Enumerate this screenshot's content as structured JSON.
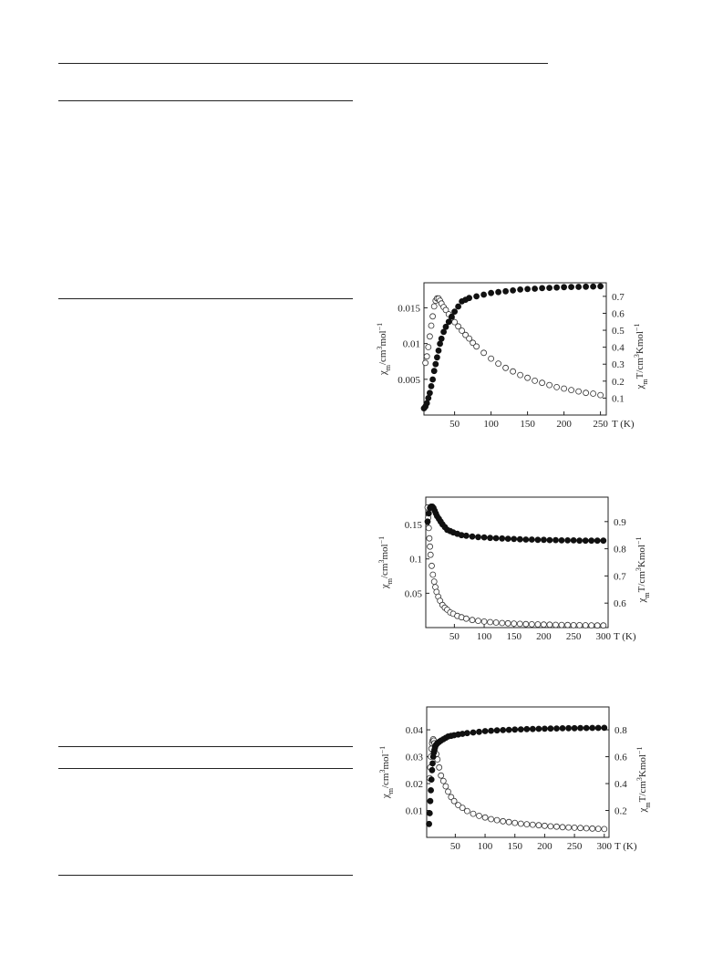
{
  "page": {
    "background": "#ffffff"
  },
  "chart_data": [
    {
      "type": "scatter",
      "x_tick_labels": [
        "50",
        "100",
        "150",
        "200",
        "250"
      ],
      "xlabel": "T (K)",
      "xlim": [
        8,
        258
      ],
      "ylim_left": [
        0.0,
        0.0185
      ],
      "ylim_right": [
        0.0,
        0.78
      ],
      "y_left_ticks": [
        0.005,
        0.01,
        0.015
      ],
      "y_left_tick_labels": [
        "0.005",
        "0.01",
        "0.015"
      ],
      "y_right_ticks": [
        0.1,
        0.2,
        0.3,
        0.4,
        0.5,
        0.6,
        0.7
      ],
      "y_right_tick_labels": [
        "0.1",
        "0.2",
        "0.3",
        "0.4",
        "0.5",
        "0.6",
        "0.7"
      ],
      "ylabel_left": {
        "base": "χ",
        "sub": "m",
        "rest1": "/cm",
        "sup1": "3",
        "rest2": "mol",
        "sup2": "−1"
      },
      "ylabel_right": {
        "base": "χ",
        "sub": "m",
        "rest1": "T/cm",
        "sup1": "3",
        "rest2": "Kmol",
        "sup2": "−1"
      },
      "series": [
        {
          "marker": "open-circle",
          "axis": "left",
          "x": [
            10,
            12,
            14,
            16,
            18,
            20,
            22,
            24,
            26,
            28,
            30,
            32,
            35,
            38,
            42,
            46,
            50,
            55,
            60,
            65,
            70,
            75,
            80,
            90,
            100,
            110,
            120,
            130,
            140,
            150,
            160,
            170,
            180,
            190,
            200,
            210,
            220,
            230,
            240,
            250
          ],
          "y": [
            0.0073,
            0.0082,
            0.0095,
            0.011,
            0.0125,
            0.0138,
            0.0152,
            0.016,
            0.0163,
            0.0163,
            0.016,
            0.0156,
            0.0151,
            0.0147,
            0.0141,
            0.0136,
            0.013,
            0.0124,
            0.0118,
            0.0112,
            0.0107,
            0.0101,
            0.0096,
            0.0087,
            0.0079,
            0.0072,
            0.0066,
            0.0061,
            0.0056,
            0.0052,
            0.0048,
            0.0045,
            0.0042,
            0.0039,
            0.0037,
            0.0035,
            0.0033,
            0.0031,
            0.003,
            0.0028
          ]
        },
        {
          "marker": "filled-circle",
          "axis": "right",
          "x": [
            8,
            10,
            12,
            14,
            16,
            18,
            20,
            22,
            24,
            26,
            28,
            30,
            32,
            35,
            38,
            42,
            46,
            50,
            55,
            60,
            65,
            70,
            80,
            90,
            100,
            110,
            120,
            130,
            140,
            150,
            160,
            170,
            180,
            190,
            200,
            210,
            220,
            230,
            240,
            250
          ],
          "y": [
            0.04,
            0.05,
            0.07,
            0.1,
            0.13,
            0.17,
            0.21,
            0.26,
            0.3,
            0.34,
            0.38,
            0.42,
            0.45,
            0.49,
            0.52,
            0.55,
            0.58,
            0.61,
            0.64,
            0.67,
            0.68,
            0.69,
            0.7,
            0.71,
            0.72,
            0.725,
            0.73,
            0.735,
            0.74,
            0.743,
            0.745,
            0.748,
            0.75,
            0.752,
            0.754,
            0.755,
            0.756,
            0.757,
            0.758,
            0.759
          ]
        }
      ]
    },
    {
      "type": "scatter",
      "x_tick_labels": [
        "50",
        "100",
        "150",
        "200",
        "250",
        "300"
      ],
      "xlabel": "T (K)",
      "xlim": [
        2,
        308
      ],
      "ylim_left": [
        0.0,
        0.19
      ],
      "ylim_right": [
        0.51,
        0.99
      ],
      "y_left_ticks": [
        0.05,
        0.1,
        0.15
      ],
      "y_left_tick_labels": [
        "0.05",
        "0.1",
        "0.15"
      ],
      "y_right_ticks": [
        0.6,
        0.7,
        0.8,
        0.9
      ],
      "y_right_tick_labels": [
        "0.6",
        "0.7",
        "0.8",
        "0.9"
      ],
      "ylabel_left": {
        "base": "χ",
        "sub": "m",
        "rest1": "/cm",
        "sup1": "3",
        "rest2": "mol",
        "sup2": "−1"
      },
      "ylabel_right": {
        "base": "χ",
        "sub": "m",
        "rest1": "T/cm",
        "sup1": "3",
        "rest2": "Kmol",
        "sup2": "−1"
      },
      "series": [
        {
          "marker": "open-circle",
          "axis": "left",
          "x": [
            5,
            6,
            7,
            8,
            9,
            10,
            12,
            14,
            16,
            18,
            20,
            23,
            26,
            30,
            34,
            38,
            43,
            48,
            55,
            62,
            70,
            80,
            90,
            100,
            110,
            120,
            130,
            140,
            150,
            160,
            170,
            180,
            190,
            200,
            210,
            220,
            230,
            240,
            250,
            260,
            270,
            280,
            290,
            300
          ],
          "y": [
            0.175,
            0.16,
            0.145,
            0.13,
            0.118,
            0.106,
            0.09,
            0.077,
            0.067,
            0.059,
            0.052,
            0.045,
            0.039,
            0.033,
            0.029,
            0.026,
            0.022,
            0.02,
            0.017,
            0.015,
            0.013,
            0.011,
            0.0098,
            0.0088,
            0.008,
            0.0073,
            0.0067,
            0.0062,
            0.0058,
            0.0054,
            0.0051,
            0.0048,
            0.0046,
            0.0044,
            0.0042,
            0.004,
            0.0038,
            0.0037,
            0.0035,
            0.0034,
            0.0033,
            0.0032,
            0.0031,
            0.003
          ]
        },
        {
          "marker": "filled-circle",
          "axis": "right",
          "x": [
            5,
            7,
            9,
            11,
            13,
            15,
            17,
            19,
            21,
            24,
            27,
            30,
            34,
            38,
            43,
            48,
            55,
            62,
            70,
            80,
            90,
            100,
            110,
            120,
            130,
            140,
            150,
            160,
            170,
            180,
            190,
            200,
            210,
            220,
            230,
            240,
            250,
            260,
            270,
            280,
            290,
            300
          ],
          "y": [
            0.9,
            0.93,
            0.95,
            0.955,
            0.955,
            0.95,
            0.94,
            0.93,
            0.92,
            0.91,
            0.9,
            0.89,
            0.88,
            0.87,
            0.865,
            0.86,
            0.855,
            0.85,
            0.848,
            0.845,
            0.843,
            0.842,
            0.84,
            0.839,
            0.838,
            0.837,
            0.836,
            0.835,
            0.834,
            0.834,
            0.833,
            0.833,
            0.832,
            0.832,
            0.831,
            0.831,
            0.831,
            0.83,
            0.83,
            0.83,
            0.83,
            0.83
          ]
        }
      ]
    },
    {
      "type": "scatter",
      "x_tick_labels": [
        "50",
        "100",
        "150",
        "200",
        "250",
        "300"
      ],
      "xlabel": "T (K)",
      "xlim": [
        2,
        308
      ],
      "ylim_left": [
        0.0,
        0.0485
      ],
      "ylim_right": [
        0.0,
        0.97
      ],
      "y_left_ticks": [
        0.01,
        0.02,
        0.03,
        0.04
      ],
      "y_left_tick_labels": [
        "0.01",
        "0.02",
        "0.03",
        "0.04"
      ],
      "y_right_ticks": [
        0.2,
        0.4,
        0.6,
        0.8
      ],
      "y_right_tick_labels": [
        "0.2",
        "0.4",
        "0.6",
        "0.8"
      ],
      "ylabel_left": {
        "base": "χ",
        "sub": "m",
        "rest1": "/cm",
        "sup1": "3",
        "rest2": "mol",
        "sup2": "−1"
      },
      "ylabel_right": {
        "base": "χ",
        "sub": "m",
        "rest1": "T/cm",
        "sup1": "3",
        "rest2": "Kmol",
        "sup2": "−1"
      },
      "series": [
        {
          "marker": "open-circle",
          "axis": "left",
          "x": [
            7,
            8,
            9,
            10,
            11,
            12,
            13,
            14,
            15,
            16,
            18,
            20,
            23,
            26,
            30,
            34,
            38,
            43,
            48,
            55,
            62,
            70,
            80,
            90,
            100,
            110,
            120,
            130,
            140,
            150,
            160,
            170,
            180,
            190,
            200,
            210,
            220,
            230,
            240,
            250,
            260,
            270,
            280,
            290,
            300
          ],
          "y": [
            0.022,
            0.026,
            0.03,
            0.033,
            0.035,
            0.036,
            0.0365,
            0.036,
            0.035,
            0.034,
            0.031,
            0.029,
            0.026,
            0.023,
            0.021,
            0.019,
            0.017,
            0.015,
            0.0135,
            0.012,
            0.011,
            0.0098,
            0.0088,
            0.008,
            0.0074,
            0.0068,
            0.0064,
            0.006,
            0.0057,
            0.0054,
            0.0051,
            0.0049,
            0.0047,
            0.0045,
            0.0043,
            0.0041,
            0.004,
            0.0038,
            0.0037,
            0.0036,
            0.0035,
            0.0034,
            0.0033,
            0.0032,
            0.0031
          ]
        },
        {
          "marker": "filled-circle",
          "axis": "right",
          "x": [
            6,
            7,
            8,
            9,
            10,
            11,
            12,
            13,
            14,
            15,
            16,
            18,
            20,
            23,
            26,
            30,
            34,
            38,
            43,
            48,
            55,
            62,
            70,
            80,
            90,
            100,
            110,
            120,
            130,
            140,
            150,
            160,
            170,
            180,
            190,
            200,
            210,
            220,
            230,
            240,
            250,
            260,
            270,
            280,
            290,
            300
          ],
          "y": [
            0.1,
            0.18,
            0.27,
            0.35,
            0.43,
            0.5,
            0.55,
            0.6,
            0.63,
            0.65,
            0.67,
            0.69,
            0.7,
            0.71,
            0.72,
            0.73,
            0.74,
            0.75,
            0.755,
            0.76,
            0.765,
            0.77,
            0.775,
            0.78,
            0.785,
            0.79,
            0.793,
            0.796,
            0.798,
            0.8,
            0.802,
            0.803,
            0.805,
            0.806,
            0.807,
            0.808,
            0.809,
            0.81,
            0.811,
            0.812,
            0.812,
            0.813,
            0.813,
            0.814,
            0.814,
            0.815
          ]
        }
      ]
    }
  ]
}
